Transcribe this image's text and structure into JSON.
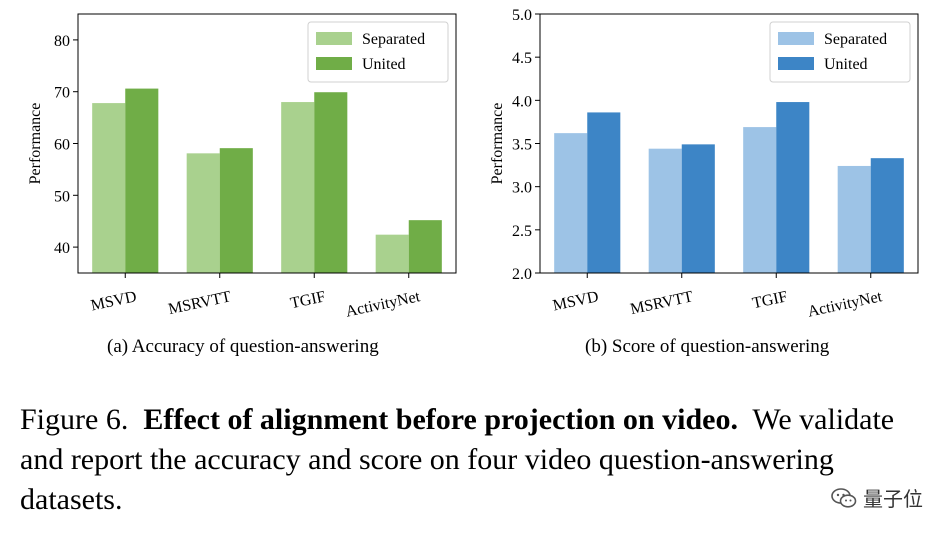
{
  "chart_data": [
    {
      "type": "bar",
      "categories": [
        "MSVD",
        "MSRVTT",
        "TGIF",
        "ActivityNet"
      ],
      "series": [
        {
          "name": "Separated",
          "values": [
            67.8,
            58.1,
            68.0,
            42.4
          ],
          "color": "#a9d18e"
        },
        {
          "name": "United",
          "values": [
            70.6,
            59.1,
            69.9,
            45.2
          ],
          "color": "#70ad47"
        }
      ],
      "ylabel": "Performance",
      "ylim": [
        35,
        85
      ],
      "yticks": [
        40,
        50,
        60,
        70,
        80
      ],
      "legend": "top-right",
      "grid": false
    },
    {
      "type": "bar",
      "categories": [
        "MSVD",
        "MSRVTT",
        "TGIF",
        "ActivityNet"
      ],
      "series": [
        {
          "name": "Separated",
          "values": [
            3.62,
            3.44,
            3.69,
            3.24
          ],
          "color": "#9dc3e6"
        },
        {
          "name": "United",
          "values": [
            3.86,
            3.49,
            3.98,
            3.33
          ],
          "color": "#3d85c6"
        }
      ],
      "ylabel": "Performance",
      "ylim": [
        2.0,
        5.0
      ],
      "yticks": [
        "2.0",
        "2.5",
        "3.0",
        "3.5",
        "4.0",
        "4.5",
        "5.0"
      ],
      "legend": "top-right",
      "grid": false
    }
  ],
  "subcaptions": {
    "left": "(a) Accuracy of question-answering",
    "right": "(b) Score of question-answering"
  },
  "caption": {
    "prefix": "Figure 6.",
    "bold": "Effect of alignment before projection on video.",
    "rest": "We validate and report the accuracy and score on four video question-answering datasets."
  },
  "watermark": {
    "text": "量子位",
    "icon": "wechat-icon"
  }
}
